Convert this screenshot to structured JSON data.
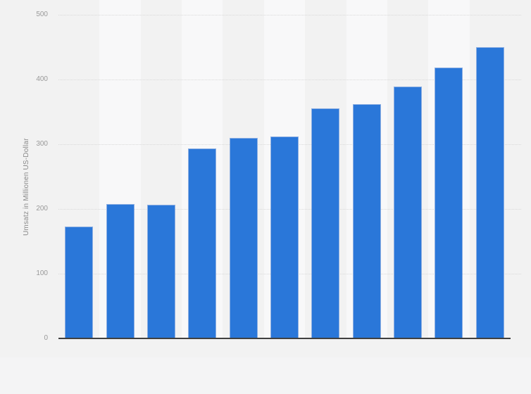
{
  "chart_data": {
    "type": "bar",
    "categories": [
      "",
      "",
      "",
      "",
      "",
      "",
      "",
      "",
      "",
      "",
      ""
    ],
    "values": [
      173,
      208,
      206,
      294,
      310,
      312,
      355,
      362,
      389,
      418,
      450
    ],
    "title": "",
    "xlabel": "",
    "ylabel": "Umsatz in Millionen US-Dollar",
    "ylim": [
      0,
      500
    ],
    "yticks": [
      0,
      100,
      200,
      300,
      400,
      500
    ],
    "grid": "horizontal-dotted",
    "legend_position": "none",
    "bar_count": 11
  },
  "colors": {
    "background": "#f2f2f2",
    "stripe_alt": "#f8f8f9",
    "bar_fill": "#2a77d9",
    "bar_edge": "#8fb0e2",
    "axis_line": "#404040",
    "gridline": "#d9d9d9",
    "tick_text": "#999999",
    "ylabel_text": "#8a8a8a",
    "footer_band": "#f4f4f5"
  }
}
